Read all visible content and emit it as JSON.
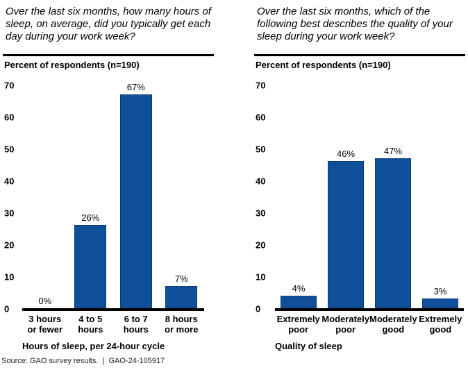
{
  "source_line": "Source: GAO survey results.  |  GAO-24-105917",
  "colors": {
    "bar_fill": "#10509a",
    "bar_border": "#0a3a70",
    "axis": "#000000"
  },
  "chart_data": [
    {
      "type": "bar",
      "title": "Over the last six months, how many hours of sleep, on average, did you typically get each day during your work week?",
      "subtitle": "Percent of respondents (n=190)",
      "categories": [
        [
          "3 hours",
          "or fewer"
        ],
        [
          "4 to 5",
          "hours"
        ],
        [
          "6 to 7",
          "hours"
        ],
        [
          "8 hours",
          "or more"
        ]
      ],
      "values": [
        0,
        26,
        67,
        7
      ],
      "value_labels": [
        "0%",
        "26%",
        "67%",
        "7%"
      ],
      "xlabel": "Hours of sleep, per 24-hour cycle",
      "ylabel": "Percent of respondents",
      "ylim": [
        0,
        70
      ],
      "yticks": [
        0,
        10,
        20,
        30,
        40,
        50,
        60,
        70
      ],
      "grid": false,
      "legend": "none"
    },
    {
      "type": "bar",
      "title": "Over the last six months, which of the following best describes the quality of your sleep during your work week?",
      "subtitle": "Percent of respondents (n=190)",
      "categories": [
        [
          "Extremely",
          "poor"
        ],
        [
          "Moderately",
          "poor"
        ],
        [
          "Moderately",
          "good"
        ],
        [
          "Extremely",
          "good"
        ]
      ],
      "values": [
        4,
        46,
        47,
        3
      ],
      "value_labels": [
        "4%",
        "46%",
        "47%",
        "3%"
      ],
      "xlabel": "Quality of sleep",
      "ylabel": "Percent of respondents",
      "ylim": [
        0,
        70
      ],
      "yticks": [
        0,
        10,
        20,
        30,
        40,
        50,
        60,
        70
      ],
      "grid": false,
      "legend": "none"
    }
  ]
}
